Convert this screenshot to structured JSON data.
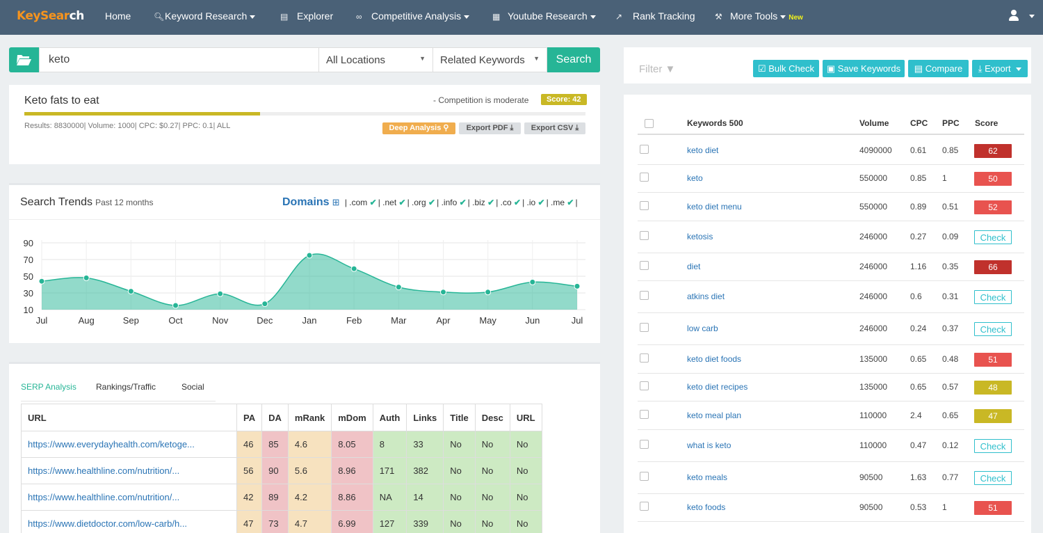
{
  "nav": {
    "logo_a": "KeySear",
    "logo_b": "ch",
    "items": [
      {
        "label": "Home",
        "icon": "home"
      },
      {
        "label": "Keyword Research",
        "icon": "search-icon"
      },
      {
        "label": "Explorer",
        "icon": "bar-chart-icon"
      },
      {
        "label": "Competitive Analysis",
        "icon": "link-icon"
      },
      {
        "label": "Youtube Research",
        "icon": "calendar-icon"
      },
      {
        "label": "Rank Tracking",
        "icon": "line-chart-icon"
      },
      {
        "label": "More Tools",
        "icon": "wrench-icon",
        "badge": "New"
      }
    ]
  },
  "search": {
    "query": "keto",
    "location": "All Locations",
    "mode": "Related Keywords",
    "button": "Search"
  },
  "keyword_card": {
    "title": "Keto fats to eat",
    "competition": "- Competition is moderate",
    "score": "Score: 42",
    "score_value": 42,
    "stats": "Results: 8830000| Volume: 1000| CPC: $0.27| PPC: 0.1| ALL",
    "deep_analysis": "Deep Analysis",
    "export_pdf": "Export PDF",
    "export_csv": "Export CSV"
  },
  "trends": {
    "title": "Search Trends",
    "subtitle": "Past 12 months",
    "domains_label": "Domains",
    "tlds": [
      ".com",
      ".net",
      ".org",
      ".info",
      ".biz",
      ".co",
      ".io",
      ".me"
    ]
  },
  "chart_data": {
    "type": "area",
    "categories": [
      "Jul",
      "Aug",
      "Sep",
      "Oct",
      "Nov",
      "Dec",
      "Jan",
      "Feb",
      "Mar",
      "Apr",
      "May",
      "Jun",
      "Jul"
    ],
    "values": [
      44,
      48,
      32,
      15,
      29,
      17,
      75,
      59,
      37,
      31,
      31,
      43,
      38
    ],
    "ylim": [
      10,
      90
    ],
    "yticks": [
      10,
      30,
      50,
      70,
      90
    ],
    "color": "#26b596",
    "grid": true
  },
  "serp": {
    "tabs": [
      "SERP Analysis",
      "Rankings/Traffic",
      "Social"
    ],
    "columns": [
      "URL",
      "PA",
      "DA",
      "mRank",
      "mDom",
      "Auth",
      "Links",
      "Title",
      "Desc",
      "URL"
    ],
    "rows": [
      [
        "https://www.everydayhealth.com/ketoge...",
        "46",
        "85",
        "4.6",
        "8.05",
        "8",
        "33",
        "No",
        "No",
        "No"
      ],
      [
        "https://www.healthline.com/nutrition/...",
        "56",
        "90",
        "5.6",
        "8.96",
        "171",
        "382",
        "No",
        "No",
        "No"
      ],
      [
        "https://www.healthline.com/nutrition/...",
        "42",
        "89",
        "4.2",
        "8.86",
        "NA",
        "14",
        "No",
        "No",
        "No"
      ],
      [
        "https://www.dietdoctor.com/low-carb/h...",
        "47",
        "73",
        "4.7",
        "6.99",
        "127",
        "339",
        "No",
        "No",
        "No"
      ]
    ]
  },
  "right": {
    "filter": "Filter",
    "buttons": [
      "Bulk Check",
      "Save Keywords",
      "Compare",
      "Export"
    ],
    "columns": [
      "Keywords 500",
      "Volume",
      "CPC",
      "PPC",
      "Score"
    ],
    "rows": [
      {
        "kw": "keto diet",
        "vol": "4090000",
        "cpc": "0.61",
        "ppc": "0.85",
        "score": "62",
        "color": "#c0312c"
      },
      {
        "kw": "keto",
        "vol": "550000",
        "cpc": "0.85",
        "ppc": "1",
        "score": "50",
        "color": "#e8534f"
      },
      {
        "kw": "keto diet menu",
        "vol": "550000",
        "cpc": "0.89",
        "ppc": "0.51",
        "score": "52",
        "color": "#e8534f"
      },
      {
        "kw": "ketosis",
        "vol": "246000",
        "cpc": "0.27",
        "ppc": "0.09",
        "score": "Check",
        "color": ""
      },
      {
        "kw": "diet",
        "vol": "246000",
        "cpc": "1.16",
        "ppc": "0.35",
        "score": "66",
        "color": "#c0312c"
      },
      {
        "kw": "atkins diet",
        "vol": "246000",
        "cpc": "0.6",
        "ppc": "0.31",
        "score": "Check",
        "color": ""
      },
      {
        "kw": "low carb",
        "vol": "246000",
        "cpc": "0.24",
        "ppc": "0.37",
        "score": "Check",
        "color": ""
      },
      {
        "kw": "keto diet foods",
        "vol": "135000",
        "cpc": "0.65",
        "ppc": "0.48",
        "score": "51",
        "color": "#e8534f"
      },
      {
        "kw": "keto diet recipes",
        "vol": "135000",
        "cpc": "0.65",
        "ppc": "0.57",
        "score": "48",
        "color": "#c9b825"
      },
      {
        "kw": "keto meal plan",
        "vol": "110000",
        "cpc": "2.4",
        "ppc": "0.65",
        "score": "47",
        "color": "#c9b825"
      },
      {
        "kw": "what is keto",
        "vol": "110000",
        "cpc": "0.47",
        "ppc": "0.12",
        "score": "Check",
        "color": ""
      },
      {
        "kw": "keto meals",
        "vol": "90500",
        "cpc": "1.63",
        "ppc": "0.77",
        "score": "Check",
        "color": ""
      },
      {
        "kw": "keto foods",
        "vol": "90500",
        "cpc": "0.53",
        "ppc": "1",
        "score": "51",
        "color": "#e8534f"
      }
    ]
  }
}
